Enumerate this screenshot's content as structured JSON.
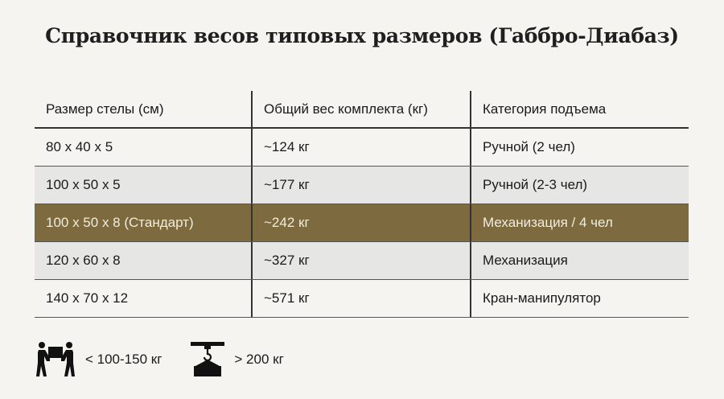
{
  "title": "Справочник весов типовых размеров (Габбро-Диабаз)",
  "table": {
    "headers": [
      "Размер стелы (см)",
      "Общий вес комплекта (кг)",
      "Категория подъема"
    ],
    "rows": [
      [
        "80 x 40 x 5",
        "~124 кг",
        "Ручной (2 чел)"
      ],
      [
        "100 x 50 x 5",
        "~177 кг",
        "Ручной (2-3 чел)"
      ],
      [
        "100 x 50 x 8 (Стандарт)",
        "~242 кг",
        "Механизация / 4 чел"
      ],
      [
        "120 x 60 x 8",
        "~327 кг",
        "Механизация"
      ],
      [
        "140 x 70 x 12",
        "~571 кг",
        "Кран-манипулятор"
      ]
    ],
    "highlight_row": 2,
    "highlight_color": "#7d6b3f"
  },
  "legend": [
    {
      "icon": "two-people-carrying-icon",
      "label": "< 100-150 кг"
    },
    {
      "icon": "crane-hook-icon",
      "label": "> 200 кг"
    }
  ]
}
